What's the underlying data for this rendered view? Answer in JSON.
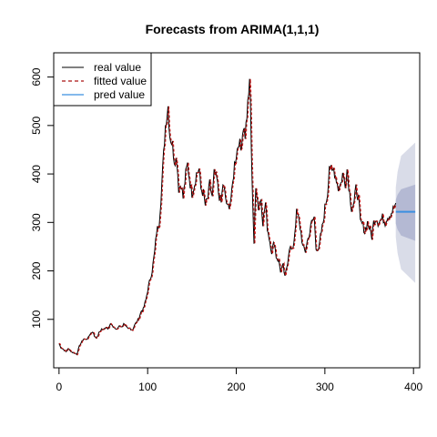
{
  "chart_data": {
    "type": "line",
    "title": "Forecasts from ARIMA(1,1,1)",
    "xlabel": "",
    "ylabel": "",
    "xlim": [
      -6,
      407
    ],
    "ylim": [
      0,
      650
    ],
    "xticks": [
      0,
      100,
      200,
      300,
      400
    ],
    "xtick_labels": [
      "0",
      "100",
      "200",
      "300",
      "400"
    ],
    "yticks": [
      100,
      200,
      300,
      400,
      500,
      600
    ],
    "ytick_labels": [
      "100",
      "200",
      "300",
      "400",
      "500",
      "600"
    ],
    "legend": {
      "position": "top-left",
      "entries": [
        {
          "label": "real value",
          "color": "#000000",
          "style": "solid"
        },
        {
          "label": "fitted value",
          "color": "#aa1111",
          "style": "dashed"
        },
        {
          "label": "pred value",
          "color": "#3b8fe0",
          "style": "solid"
        }
      ]
    },
    "colors": {
      "real": "#000000",
      "fitted": "#cc1111",
      "pred": "#3b8fe0",
      "band_outer": "#d9dce8",
      "band_inner": "#b4b9d3"
    },
    "anchors_x": [
      0,
      2,
      5,
      8,
      10,
      13,
      15,
      18,
      20,
      23,
      25,
      28,
      30,
      33,
      35,
      38,
      40,
      43,
      45,
      48,
      50,
      53,
      55,
      58,
      60,
      63,
      65,
      68,
      70,
      73,
      75,
      78,
      80,
      83,
      85,
      88,
      90,
      93,
      95,
      98,
      100,
      103,
      105,
      108,
      110,
      113,
      115,
      118,
      120,
      123,
      125,
      128,
      130,
      133,
      135,
      138,
      140,
      143,
      145,
      148,
      150,
      153,
      155,
      158,
      160,
      163,
      165,
      168,
      170,
      173,
      175,
      178,
      180,
      183,
      185,
      188,
      190,
      193,
      195,
      198,
      200,
      203,
      205,
      208,
      210,
      212,
      214,
      215,
      216,
      218,
      220,
      222,
      225,
      228,
      230,
      233,
      235,
      238,
      240,
      243,
      245,
      248,
      250,
      253,
      255,
      258,
      260,
      263,
      265,
      268,
      270,
      273,
      275,
      278,
      280,
      283,
      285,
      288,
      290,
      293,
      295,
      298,
      300,
      303,
      305,
      308,
      310,
      313,
      315,
      318,
      320,
      323,
      325,
      328,
      330,
      333,
      335,
      338,
      340,
      343,
      345,
      348,
      350,
      353,
      355,
      358,
      360,
      363,
      365,
      368,
      370,
      373,
      375,
      378,
      380
    ],
    "anchors_y": [
      50,
      42,
      38,
      33,
      40,
      35,
      32,
      30,
      28,
      45,
      52,
      60,
      58,
      62,
      70,
      75,
      65,
      62,
      72,
      80,
      78,
      85,
      82,
      90,
      86,
      82,
      78,
      88,
      84,
      90,
      85,
      80,
      82,
      78,
      88,
      95,
      102,
      118,
      120,
      140,
      160,
      185,
      200,
      240,
      280,
      300,
      350,
      440,
      500,
      540,
      480,
      460,
      430,
      430,
      370,
      380,
      350,
      400,
      420,
      380,
      360,
      380,
      400,
      410,
      370,
      360,
      335,
      350,
      380,
      350,
      400,
      390,
      360,
      340,
      380,
      350,
      330,
      340,
      360,
      420,
      440,
      470,
      450,
      500,
      480,
      520,
      560,
      600,
      540,
      380,
      250,
      380,
      330,
      350,
      300,
      340,
      290,
      260,
      240,
      260,
      230,
      220,
      200,
      210,
      185,
      220,
      250,
      240,
      260,
      320,
      310,
      280,
      250,
      240,
      260,
      280,
      300,
      310,
      250,
      240,
      270,
      300,
      330,
      360,
      420,
      400,
      410,
      390,
      370,
      380,
      400,
      380,
      410,
      360,
      330,
      340,
      370,
      350,
      300,
      295,
      280,
      300,
      290,
      270,
      300,
      310,
      300,
      305,
      310,
      300,
      310,
      315,
      320,
      330,
      340
    ],
    "forecast": {
      "start": 380,
      "end": 402,
      "value": 322,
      "band_80": [
        298,
        346
      ],
      "band_95": [
        270,
        372
      ],
      "band_80_end": [
        262,
        378
      ],
      "band_95_end": [
        175,
        465
      ]
    }
  }
}
